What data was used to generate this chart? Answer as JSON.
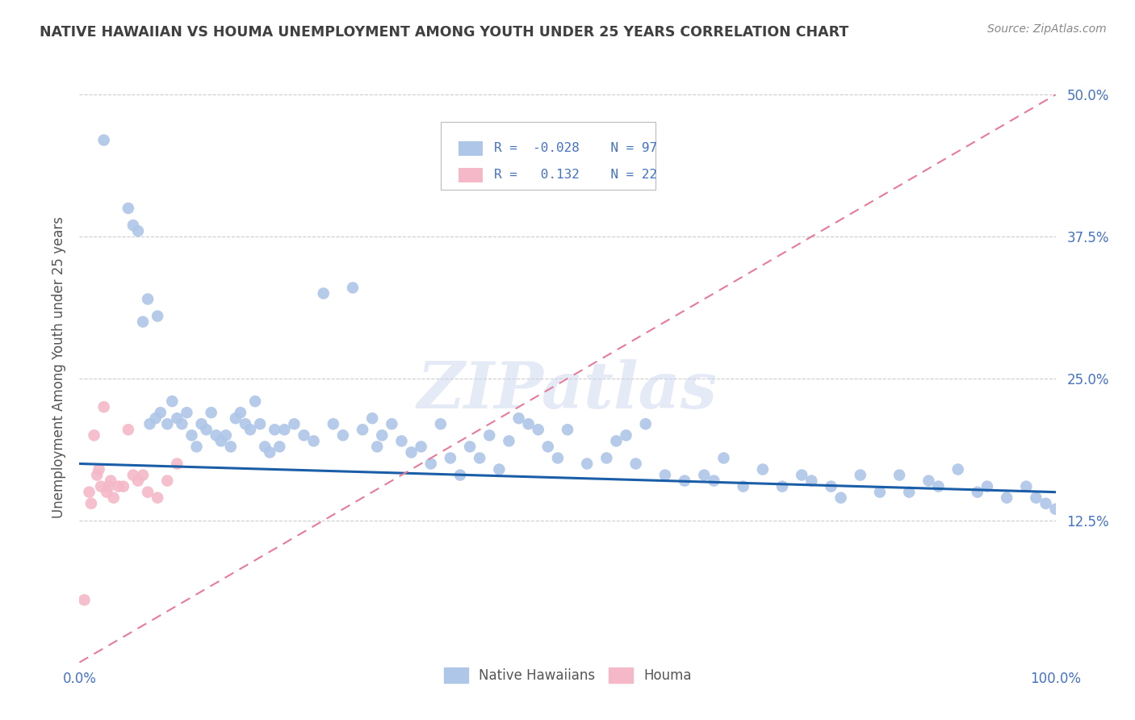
{
  "title": "NATIVE HAWAIIAN VS HOUMA UNEMPLOYMENT AMONG YOUTH UNDER 25 YEARS CORRELATION CHART",
  "source": "Source: ZipAtlas.com",
  "ylabel": "Unemployment Among Youth under 25 years",
  "nh_R": -0.028,
  "nh_N": 97,
  "houma_R": 0.132,
  "houma_N": 22,
  "nh_color": "#aec6e8",
  "houma_color": "#f4b8c8",
  "nh_line_color": "#1a5ea8",
  "houma_line_color": "#e87a9a",
  "background_color": "#ffffff",
  "grid_color": "#cccccc",
  "title_color": "#404040",
  "axis_label_color": "#4472c4",
  "watermark": "ZIPatlas",
  "nh_x": [
    2.5,
    5.0,
    5.5,
    6.0,
    6.5,
    7.0,
    7.2,
    7.8,
    8.0,
    8.3,
    9.0,
    9.5,
    10.0,
    10.5,
    11.0,
    11.5,
    12.0,
    12.5,
    13.0,
    13.5,
    14.0,
    14.5,
    15.0,
    15.5,
    16.0,
    16.5,
    17.0,
    17.5,
    18.0,
    18.5,
    19.0,
    19.5,
    20.0,
    20.5,
    21.0,
    22.0,
    23.0,
    24.0,
    25.0,
    26.0,
    27.0,
    28.0,
    29.0,
    30.0,
    30.5,
    31.0,
    32.0,
    33.0,
    34.0,
    35.0,
    36.0,
    37.0,
    38.0,
    39.0,
    40.0,
    41.0,
    42.0,
    43.0,
    44.0,
    45.0,
    46.0,
    47.0,
    48.0,
    49.0,
    50.0,
    52.0,
    54.0,
    55.0,
    56.0,
    57.0,
    58.0,
    60.0,
    62.0,
    64.0,
    65.0,
    66.0,
    68.0,
    70.0,
    72.0,
    74.0,
    75.0,
    77.0,
    78.0,
    80.0,
    82.0,
    84.0,
    85.0,
    87.0,
    88.0,
    90.0,
    92.0,
    93.0,
    95.0,
    97.0,
    98.0,
    99.0,
    100.0
  ],
  "nh_y": [
    46.0,
    40.0,
    38.5,
    38.0,
    30.0,
    32.0,
    21.0,
    21.5,
    30.5,
    22.0,
    21.0,
    23.0,
    21.5,
    21.0,
    22.0,
    20.0,
    19.0,
    21.0,
    20.5,
    22.0,
    20.0,
    19.5,
    20.0,
    19.0,
    21.5,
    22.0,
    21.0,
    20.5,
    23.0,
    21.0,
    19.0,
    18.5,
    20.5,
    19.0,
    20.5,
    21.0,
    20.0,
    19.5,
    32.5,
    21.0,
    20.0,
    33.0,
    20.5,
    21.5,
    19.0,
    20.0,
    21.0,
    19.5,
    18.5,
    19.0,
    17.5,
    21.0,
    18.0,
    16.5,
    19.0,
    18.0,
    20.0,
    17.0,
    19.5,
    21.5,
    21.0,
    20.5,
    19.0,
    18.0,
    20.5,
    17.5,
    18.0,
    19.5,
    20.0,
    17.5,
    21.0,
    16.5,
    16.0,
    16.5,
    16.0,
    18.0,
    15.5,
    17.0,
    15.5,
    16.5,
    16.0,
    15.5,
    14.5,
    16.5,
    15.0,
    16.5,
    15.0,
    16.0,
    15.5,
    17.0,
    15.0,
    15.5,
    14.5,
    15.5,
    14.5,
    14.0,
    13.5
  ],
  "houma_x": [
    0.5,
    1.0,
    1.2,
    1.5,
    1.8,
    2.0,
    2.2,
    2.5,
    2.8,
    3.0,
    3.2,
    3.5,
    4.0,
    4.5,
    5.0,
    5.5,
    6.0,
    6.5,
    7.0,
    8.0,
    9.0,
    10.0
  ],
  "houma_y": [
    5.5,
    15.0,
    14.0,
    20.0,
    16.5,
    17.0,
    15.5,
    22.5,
    15.0,
    15.5,
    16.0,
    14.5,
    15.5,
    15.5,
    20.5,
    16.5,
    16.0,
    16.5,
    15.0,
    14.5,
    16.0,
    17.5
  ]
}
